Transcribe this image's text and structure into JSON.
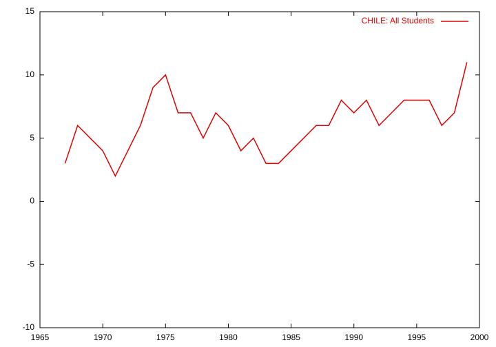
{
  "chart_data": {
    "type": "line",
    "x": [
      1967,
      1968,
      1970,
      1971,
      1973,
      1974,
      1975,
      1976,
      1977,
      1978,
      1979,
      1980,
      1981,
      1982,
      1983,
      1984,
      1987,
      1988,
      1989,
      1990,
      1991,
      1992,
      1994,
      1996,
      1997,
      1998,
      1999
    ],
    "series": [
      {
        "name": "CHILE: All Students",
        "color": "#e00000",
        "values": [
          3,
          6,
          4,
          2,
          6,
          9,
          10,
          7,
          7,
          5,
          7,
          6,
          4,
          5,
          3,
          3,
          6,
          6,
          8,
          7,
          8,
          6,
          8,
          8,
          6,
          7,
          11
        ]
      }
    ],
    "xlim": [
      1965,
      2000
    ],
    "xticks": [
      1965,
      1970,
      1975,
      1980,
      1985,
      1990,
      1995,
      2000
    ],
    "ylim": [
      -10,
      15
    ],
    "yticks": [
      -10,
      -5,
      0,
      5,
      10,
      15
    ],
    "grid": false,
    "legend": "top-right"
  }
}
